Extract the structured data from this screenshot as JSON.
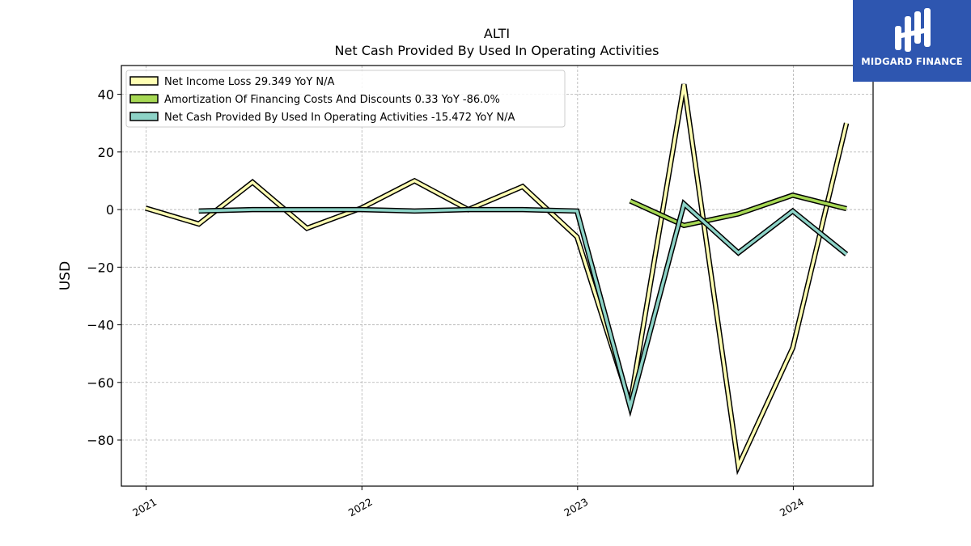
{
  "chart_data": {
    "type": "line",
    "title": "ALTI",
    "subtitle": "Net Cash Provided By Used In Operating Activities",
    "xlabel": "",
    "ylabel": "USD",
    "xlim": [
      "2020-11-20",
      "2024-05-15"
    ],
    "ylim": [
      -96,
      50
    ],
    "x_ticks": [
      "2021-01-01",
      "2022-01-01",
      "2023-01-01",
      "2024-01-01"
    ],
    "x_tick_labels": [
      "2021",
      "2022",
      "2023",
      "2024"
    ],
    "y_ticks": [
      40,
      20,
      0,
      -20,
      -40,
      -60,
      -80
    ],
    "y_tick_labels": [
      "40",
      "20",
      "0",
      "−20",
      "−40",
      "−60",
      "−80"
    ],
    "grid": true,
    "legend_position": "top-left",
    "series": [
      {
        "name": "Net Income Loss  29.349 YoY N/A",
        "color": "#ffffb3",
        "points": [
          [
            "2020-12-31",
            0.5
          ],
          [
            "2021-03-31",
            -5.0
          ],
          [
            "2021-06-30",
            9.5
          ],
          [
            "2021-09-30",
            -6.5
          ],
          [
            "2021-12-31",
            0.5
          ],
          [
            "2022-03-31",
            10.0
          ],
          [
            "2022-06-30",
            0.0
          ],
          [
            "2022-09-30",
            8.0
          ],
          [
            "2022-12-31",
            -9.5
          ],
          [
            "2023-03-31",
            -67.5
          ],
          [
            "2023-06-30",
            43.5
          ],
          [
            "2023-09-30",
            -89.0
          ],
          [
            "2023-12-31",
            -48.0
          ],
          [
            "2024-03-31",
            30.0
          ]
        ]
      },
      {
        "name": "Amortization Of Financing Costs And Discounts  0.33 YoY -86.0%",
        "color": "#a6d854",
        "points": [
          [
            "2023-03-31",
            3.0
          ],
          [
            "2023-06-30",
            -5.5
          ],
          [
            "2023-09-30",
            -1.5
          ],
          [
            "2023-12-31",
            5.0
          ],
          [
            "2024-03-31",
            0.3
          ]
        ]
      },
      {
        "name": "Net Cash Provided By Used In Operating Activities  -15.472 YoY N/A",
        "color": "#8dd3c7",
        "points": [
          [
            "2021-03-31",
            -0.5
          ],
          [
            "2021-06-30",
            0.0
          ],
          [
            "2021-09-30",
            0.0
          ],
          [
            "2021-12-31",
            0.0
          ],
          [
            "2022-03-31",
            -0.5
          ],
          [
            "2022-06-30",
            0.0
          ],
          [
            "2022-09-30",
            0.0
          ],
          [
            "2022-12-31",
            -0.5
          ],
          [
            "2023-03-31",
            -68.5
          ],
          [
            "2023-06-30",
            2.0
          ],
          [
            "2023-09-30",
            -15.0
          ],
          [
            "2023-12-31",
            -0.5
          ],
          [
            "2024-03-31",
            -15.5
          ]
        ]
      }
    ]
  },
  "logo": {
    "text": "MIDGARD FINANCE"
  }
}
